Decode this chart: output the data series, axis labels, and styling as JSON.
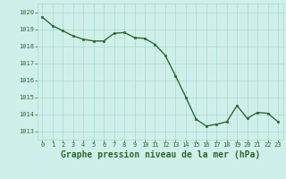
{
  "x": [
    0,
    1,
    2,
    3,
    4,
    5,
    6,
    7,
    8,
    9,
    10,
    11,
    12,
    13,
    14,
    15,
    16,
    17,
    18,
    19,
    20,
    21,
    22,
    23
  ],
  "y": [
    1019.7,
    1019.2,
    1018.9,
    1018.6,
    1018.4,
    1018.3,
    1018.3,
    1018.75,
    1018.8,
    1018.5,
    1018.45,
    1018.1,
    1017.45,
    1016.25,
    1015.0,
    1013.7,
    1013.3,
    1013.4,
    1013.55,
    1014.5,
    1013.75,
    1014.1,
    1014.05,
    1013.55
  ],
  "line_color": "#2d6a2d",
  "marker": "s",
  "marker_size": 2.0,
  "bg_color": "#cff0ea",
  "grid_color": "#a8d8d0",
  "xlabel": "Graphe pression niveau de la mer (hPa)",
  "xlabel_fontsize": 7.0,
  "xlabel_color": "#2d6a2d",
  "xlabel_bold": true,
  "ylim": [
    1012.5,
    1020.5
  ],
  "xlim": [
    -0.5,
    23.5
  ],
  "yticks": [
    1013,
    1014,
    1015,
    1016,
    1017,
    1018,
    1019,
    1020
  ],
  "xticks": [
    0,
    1,
    2,
    3,
    4,
    5,
    6,
    7,
    8,
    9,
    10,
    11,
    12,
    13,
    14,
    15,
    16,
    17,
    18,
    19,
    20,
    21,
    22,
    23
  ],
  "tick_color": "#2d6a2d",
  "tick_fontsize": 5.0,
  "line_width": 1.0
}
